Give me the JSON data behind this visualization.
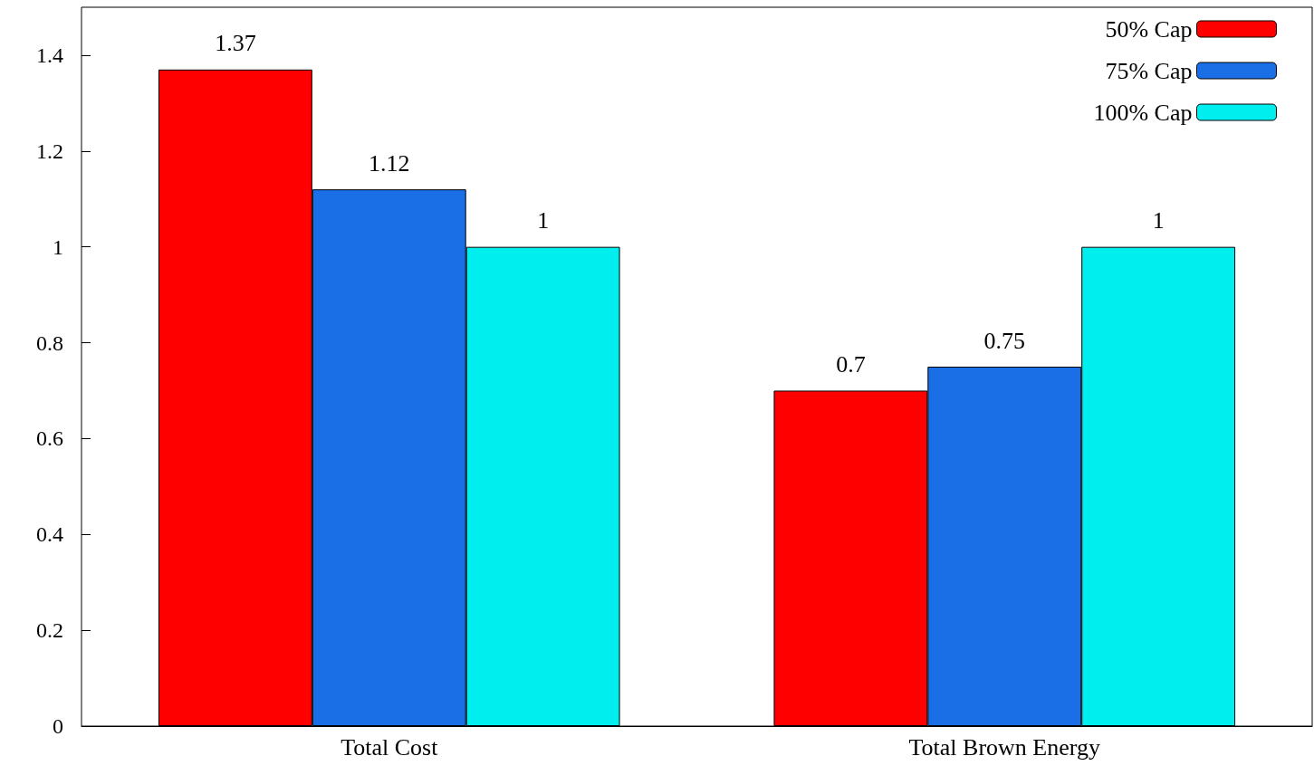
{
  "chart_data": {
    "type": "bar",
    "categories": [
      "Total Cost",
      "Total Brown Energy"
    ],
    "series": [
      {
        "name": "50% Cap",
        "color": "#ff0000",
        "values": [
          1.37,
          0.7
        ]
      },
      {
        "name": "75% Cap",
        "color": "#1a6ee6",
        "values": [
          1.12,
          0.75
        ]
      },
      {
        "name": "100% Cap",
        "color": "#00eeee",
        "values": [
          1,
          1
        ]
      }
    ],
    "ylim": [
      0,
      1.5
    ],
    "yticks": [
      0,
      0.2,
      0.4,
      0.6,
      0.8,
      1,
      1.2,
      1.4
    ],
    "grid": false,
    "legend": "top right",
    "data_labels": true
  }
}
